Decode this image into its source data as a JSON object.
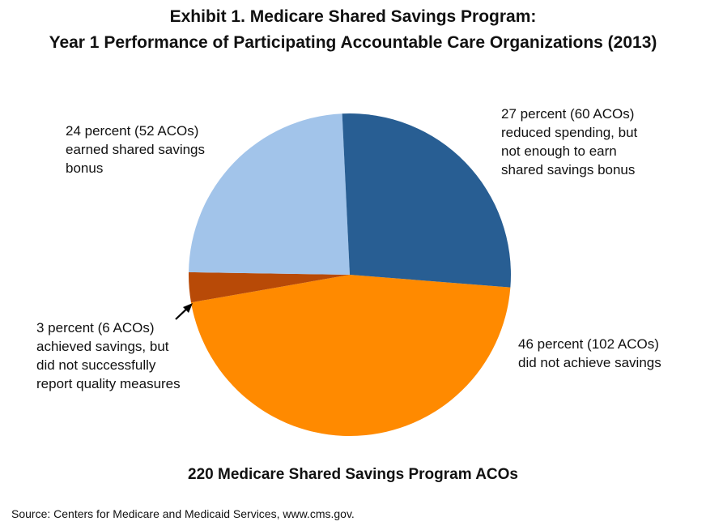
{
  "title_lines": [
    "Exhibit 1. Medicare Shared Savings Program:",
    "Year 1 Performance of Participating Accountable Care Organizations (2013)"
  ],
  "chart_data": {
    "type": "pie",
    "title": "Exhibit 1. Medicare Shared Savings Program: Year 1 Performance of Participating Accountable Care Organizations (2013)",
    "subtitle": "220 Medicare Shared Savings Program ACOs",
    "source": "Source: Centers for Medicare and Medicaid Services, www.cms.gov.",
    "slices": [
      {
        "label_lines": [
          "46 percent (102 ACOs)",
          "did not achieve savings"
        ],
        "percent": 46,
        "acos": 102,
        "color": "#FF8A00"
      },
      {
        "label_lines": [
          "3 percent (6 ACOs)",
          "achieved savings, but",
          "did not successfully",
          "report quality measures"
        ],
        "percent": 3,
        "acos": 6,
        "color": "#B84A07"
      },
      {
        "label_lines": [
          "24 percent (52 ACOs)",
          "earned shared savings",
          "bonus"
        ],
        "percent": 24,
        "acos": 52,
        "color": "#A2C4EA"
      },
      {
        "label_lines": [
          "27 percent (60 ACOs)",
          "reduced spending, but",
          "not enough to earn",
          "shared savings bonus"
        ],
        "percent": 27,
        "acos": 60,
        "color": "#285E93"
      }
    ]
  }
}
